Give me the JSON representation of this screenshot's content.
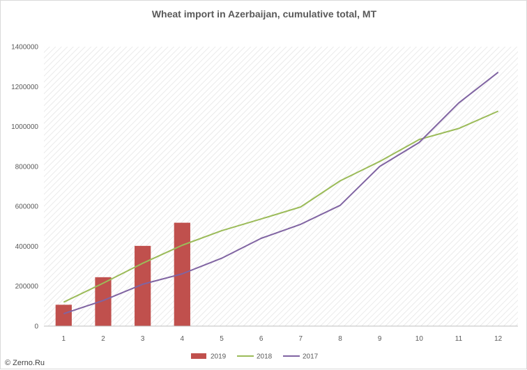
{
  "credit": "© Zerno.Ru",
  "chart_data": {
    "type": "bar",
    "title": "Wheat import in Azerbaijan, cumulative total, MT",
    "xlabel": "",
    "ylabel": "",
    "categories": [
      "1",
      "2",
      "3",
      "4",
      "5",
      "6",
      "7",
      "8",
      "9",
      "10",
      "11",
      "12"
    ],
    "ylim": [
      0,
      1400000
    ],
    "yticks": [
      0,
      200000,
      400000,
      600000,
      800000,
      1000000,
      1200000,
      1400000
    ],
    "ytick_labels": [
      "0",
      "200000",
      "400000",
      "600000",
      "800000",
      "1000000",
      "1200000",
      "1400000"
    ],
    "grid": "diagonal hatch background",
    "legend_position": "bottom",
    "series": [
      {
        "name": "2019",
        "type": "bar",
        "color": "#c0504d",
        "values": [
          107000,
          245000,
          402000,
          518000,
          null,
          null,
          null,
          null,
          null,
          null,
          null,
          null
        ]
      },
      {
        "name": "2018",
        "type": "line",
        "color": "#9bbb59",
        "values": [
          120000,
          215000,
          315000,
          405000,
          478000,
          537000,
          597000,
          728000,
          825000,
          935000,
          990000,
          1077000
        ]
      },
      {
        "name": "2017",
        "type": "line",
        "color": "#8064a2",
        "values": [
          62000,
          128000,
          210000,
          262000,
          340000,
          440000,
          510000,
          605000,
          800000,
          920000,
          1118000,
          1272000
        ]
      }
    ]
  }
}
